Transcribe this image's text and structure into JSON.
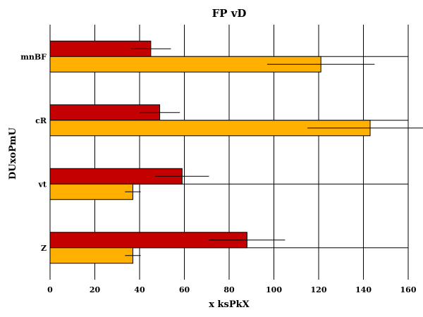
{
  "chart_data": {
    "type": "bar",
    "orientation": "horizontal",
    "title": "FP vD",
    "xlabel": "x ksPkX",
    "ylabel": "DUxoPmU",
    "categories": [
      "mnBF",
      "cR",
      "vt",
      "Z"
    ],
    "xlim": [
      0,
      160
    ],
    "xticks": [
      0,
      20,
      40,
      60,
      80,
      100,
      120,
      140,
      160
    ],
    "grid": true,
    "series": [
      {
        "color": "#c40000",
        "values": [
          45,
          49,
          59,
          88
        ],
        "errors": [
          9,
          9,
          12,
          17
        ]
      },
      {
        "color": "#ffb000",
        "values": [
          121,
          143,
          37,
          37
        ],
        "errors": [
          24,
          28,
          3.5,
          3.5
        ]
      }
    ]
  }
}
